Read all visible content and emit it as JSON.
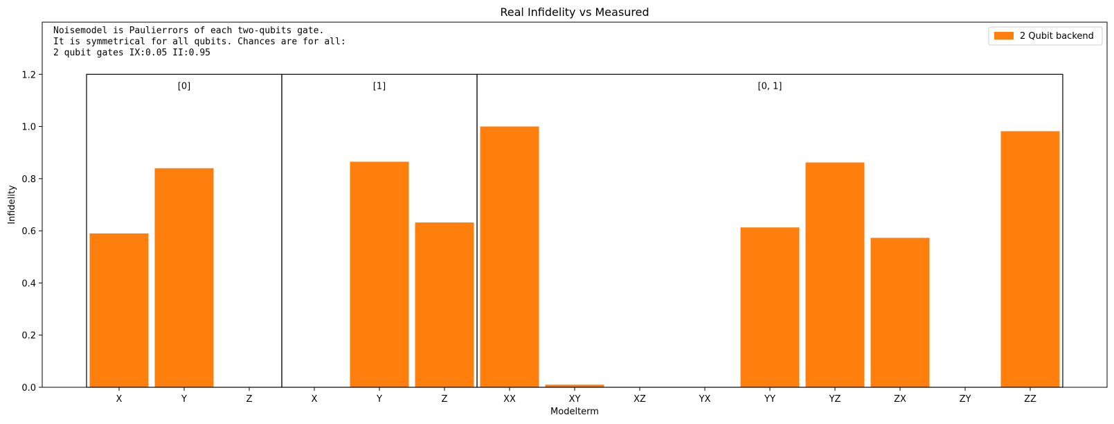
{
  "chart_data": {
    "type": "bar",
    "title": "Real Infidelity vs Measured",
    "xlabel": "Modelterm",
    "ylabel": "Infidelity",
    "ylim": [
      0,
      1.4
    ],
    "yticks": [
      "0.0",
      "0.2",
      "0.4",
      "0.6",
      "0.8",
      "1.0",
      "1.2"
    ],
    "categories": [
      "X",
      "Y",
      "Z",
      "X",
      "Y",
      "Z",
      "XX",
      "XY",
      "XZ",
      "YX",
      "YY",
      "YZ",
      "ZX",
      "ZY",
      "ZZ"
    ],
    "series": [
      {
        "name": "2 Qubit backend",
        "color": "#ff7f0e",
        "values": [
          0.59,
          0.84,
          0.0,
          0.0,
          0.865,
          0.632,
          1.0,
          0.01,
          0.0,
          0.0,
          0.613,
          0.862,
          0.573,
          0.0,
          0.982
        ]
      }
    ],
    "groups": [
      {
        "label": "[0]",
        "start_index": 0,
        "end_index": 2
      },
      {
        "label": "[1]",
        "start_index": 3,
        "end_index": 5
      },
      {
        "label": "[0, 1]",
        "start_index": 6,
        "end_index": 14
      }
    ],
    "group_box_top": 1.2,
    "annotation": [
      "Noisemodel is Paulierrors of each two-qubits gate.",
      "It is symmetrical for all qubits. Chances are for all:",
      "2 qubit gates IX:0.05   II:0.95"
    ],
    "legend_position": "top-right",
    "grid": false
  }
}
